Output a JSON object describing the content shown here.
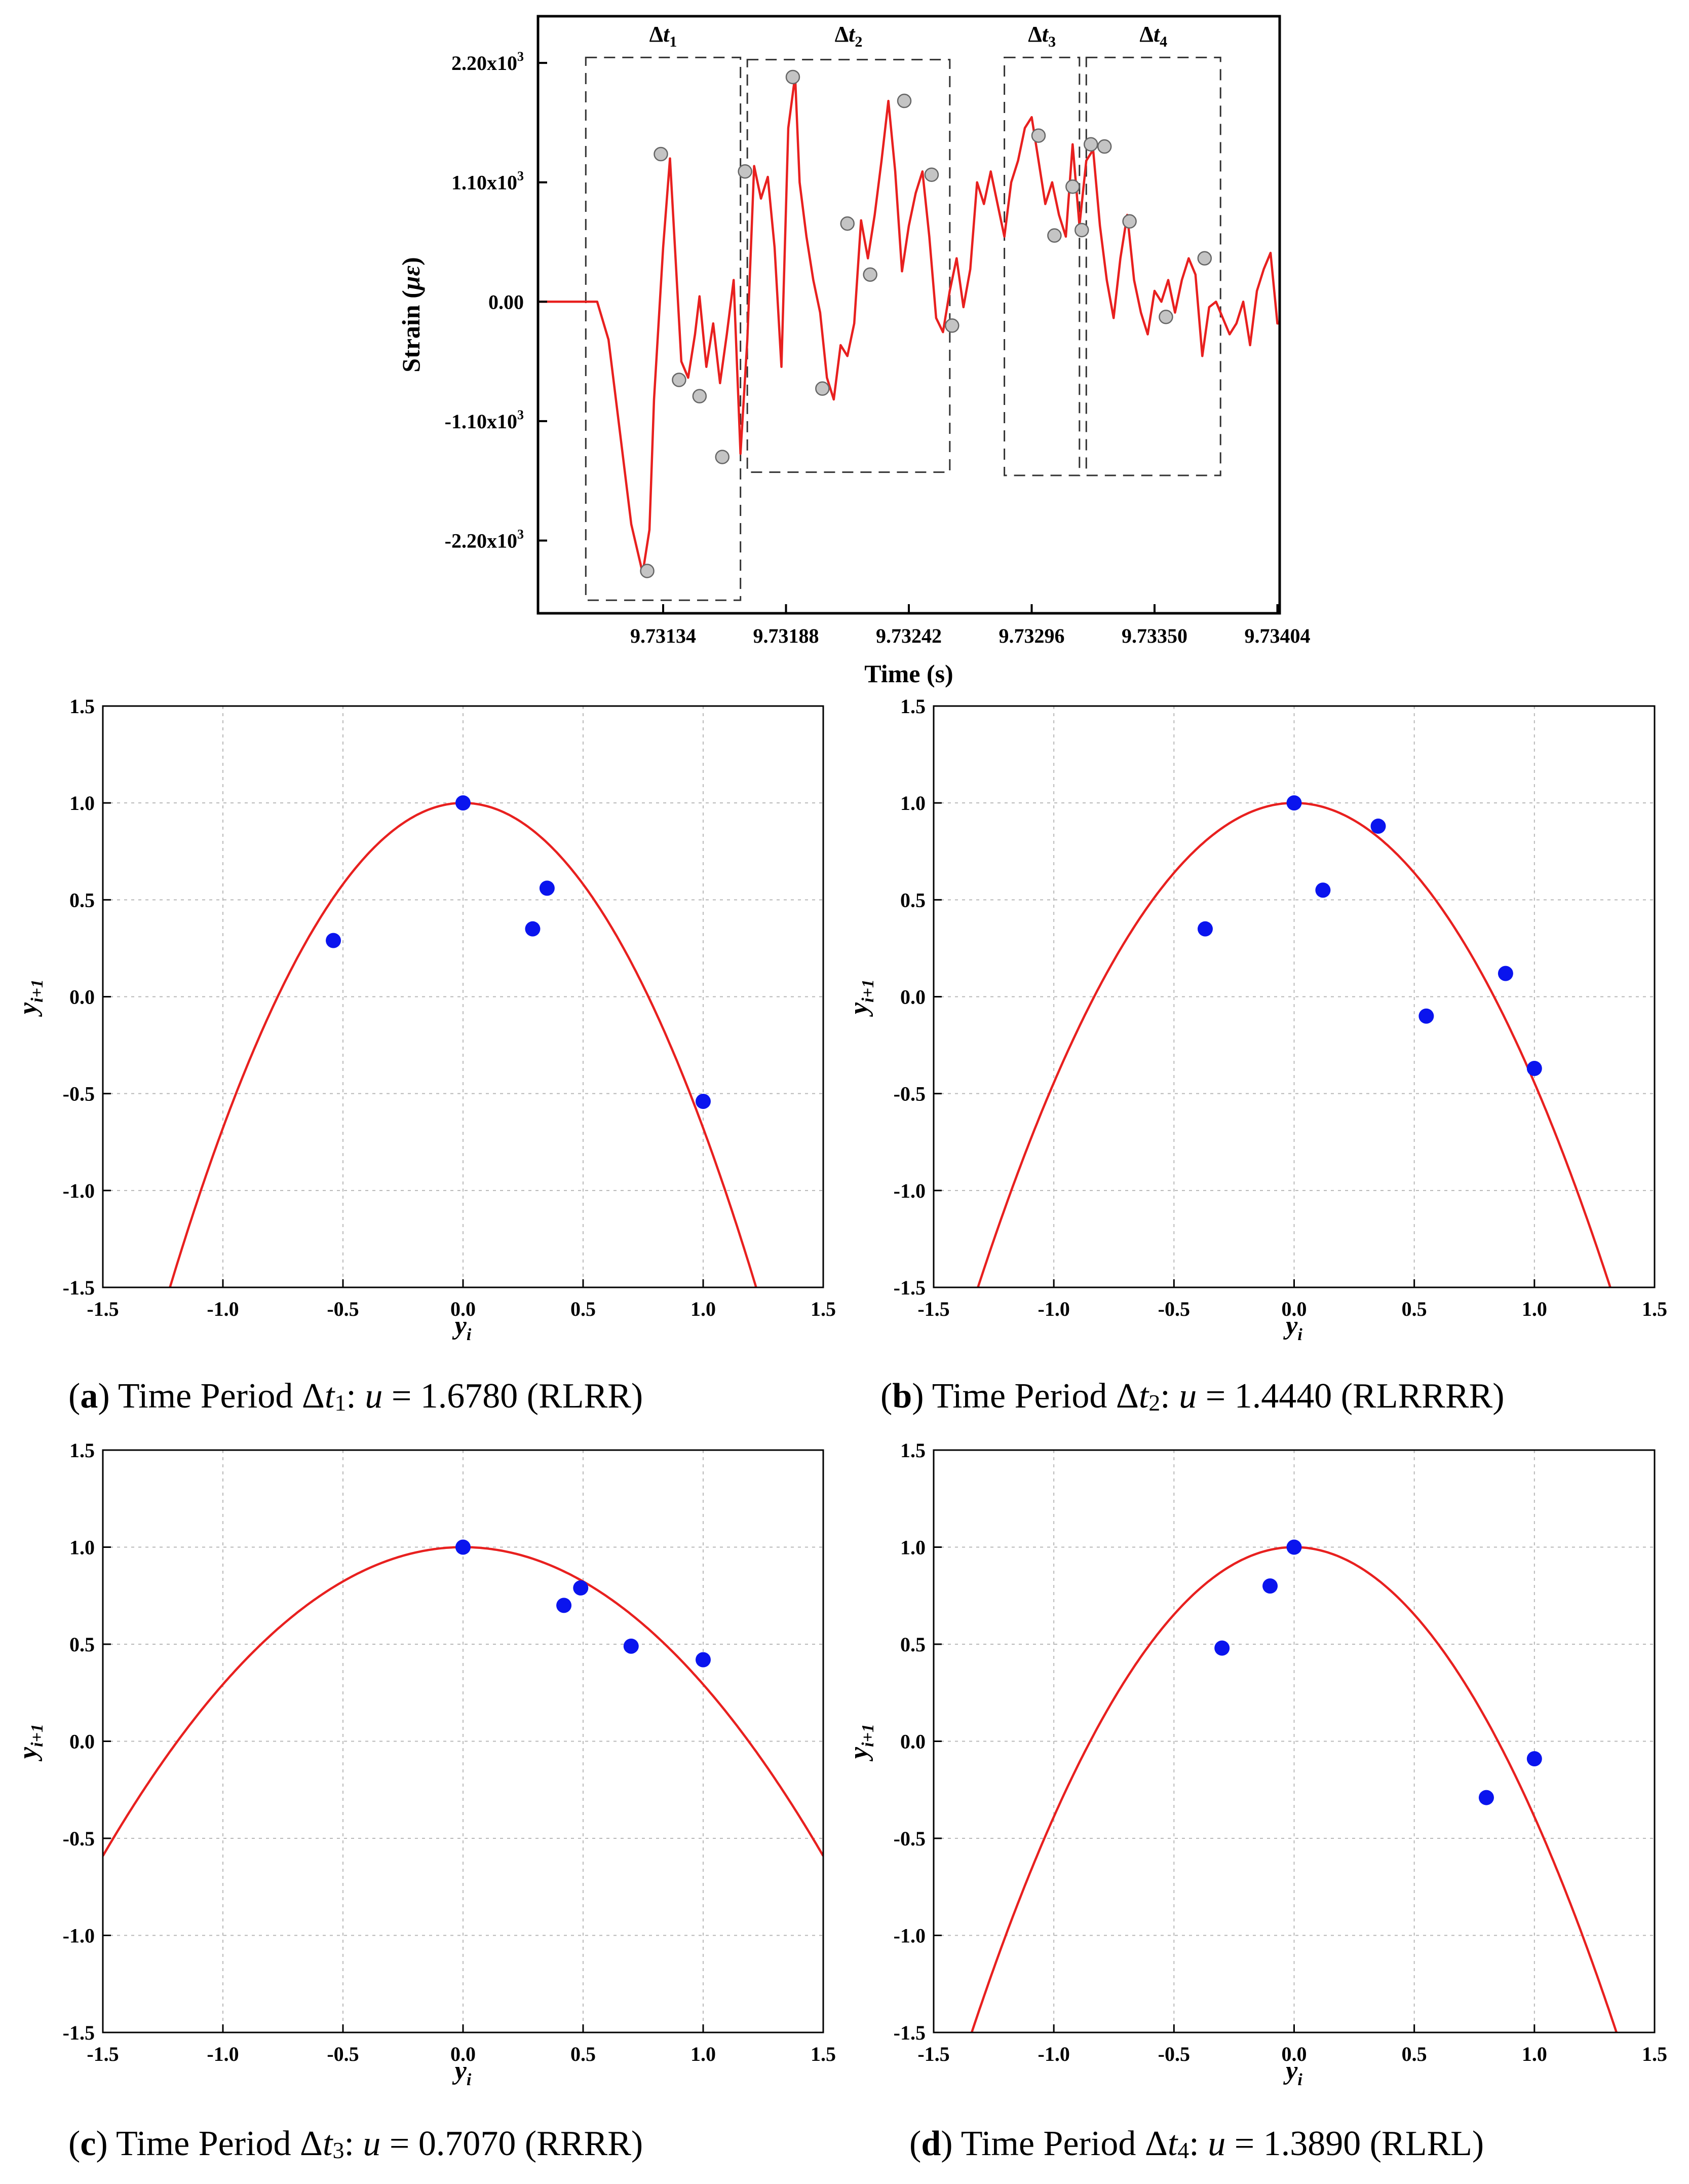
{
  "chart_data": [
    {
      "id": "top",
      "type": "line",
      "xlabel": "Time (s)",
      "ylabel_main": "Strain (",
      "ylabel_unit": "με",
      "ylabel_close": ")",
      "xticks": [
        "9.73134",
        "9.73188",
        "9.73242",
        "9.73296",
        "9.73350",
        "9.73404"
      ],
      "xtick_values": [
        9.73134,
        9.73188,
        9.73242,
        9.73296,
        9.7335,
        9.73404
      ],
      "xlim": [
        9.73079,
        9.73405
      ],
      "ylim": [
        -2870,
        2630
      ],
      "yticks": [
        {
          "value": 2200,
          "base": "2.20x10",
          "exp": "3"
        },
        {
          "value": 1100,
          "base": "1.10x10",
          "exp": "3"
        },
        {
          "value": 0,
          "base": "0.00",
          "exp": ""
        },
        {
          "value": -1100,
          "base": "-1.10x10",
          "exp": "3"
        },
        {
          "value": -2200,
          "base": "-2.20x10",
          "exp": "3"
        }
      ],
      "periods": [
        {
          "label": "Δt",
          "sub": "1",
          "x0": 9.731,
          "x1": 9.73168,
          "y0": -2750,
          "y1": 2250
        },
        {
          "label": "Δt",
          "sub": "2",
          "x0": 9.73171,
          "x1": 9.7326,
          "y0": -1570,
          "y1": 2230
        },
        {
          "label": "Δt",
          "sub": "3",
          "x0": 9.73284,
          "x1": 9.73317,
          "y0": -1600,
          "y1": 2250
        },
        {
          "label": "Δt",
          "sub": "4",
          "x0": 9.7332,
          "x1": 9.73379,
          "y0": -1600,
          "y1": 2250
        }
      ],
      "series": [
        {
          "name": "strain",
          "color": "#e8201f",
          "x": [
            9.73079,
            9.731,
            9.73105,
            9.7311,
            9.73115,
            9.7312,
            9.73125,
            9.73128,
            9.7313,
            9.73134,
            9.73137,
            9.7314,
            9.73142,
            9.73145,
            9.73148,
            9.7315,
            9.73153,
            9.73156,
            9.73159,
            9.73162,
            9.73165,
            9.73168,
            9.73171,
            9.73174,
            9.73177,
            9.7318,
            9.73183,
            9.73186,
            9.73189,
            9.73192,
            9.73194,
            9.73197,
            9.732,
            9.73203,
            9.73206,
            9.73209,
            9.73212,
            9.73215,
            9.73218,
            9.73221,
            9.73224,
            9.73227,
            9.7323,
            9.73233,
            9.73236,
            9.73239,
            9.73242,
            9.73245,
            9.73248,
            9.73251,
            9.73254,
            9.73257,
            9.7326,
            9.73263,
            9.73266,
            9.73269,
            9.73272,
            9.73275,
            9.73278,
            9.73281,
            9.73284,
            9.73287,
            9.7329,
            9.73293,
            9.73296,
            9.73299,
            9.73302,
            9.73305,
            9.73308,
            9.73311,
            9.73314,
            9.73317,
            9.7332,
            9.73323,
            9.73326,
            9.73329,
            9.73332,
            9.73335,
            9.73338,
            9.73341,
            9.73344,
            9.73347,
            9.7335,
            9.73353,
            9.73356,
            9.73359,
            9.73362,
            9.73365,
            9.73368,
            9.73371,
            9.73374,
            9.73377,
            9.7338,
            9.73383,
            9.73386,
            9.73389,
            9.73392,
            9.73395,
            9.73398,
            9.73401,
            9.73404,
            9.73405
          ],
          "y": [
            0,
            0,
            0,
            -350,
            -1200,
            -2050,
            -2500,
            -2100,
            -900,
            500,
            1320,
            200,
            -550,
            -700,
            -300,
            50,
            -600,
            -200,
            -750,
            -300,
            200,
            -1400,
            -350,
            1250,
            950,
            1150,
            500,
            -600,
            1600,
            2080,
            1100,
            600,
            200,
            -100,
            -700,
            -900,
            -400,
            -500,
            -200,
            750,
            400,
            800,
            1300,
            1850,
            1200,
            280,
            700,
            1000,
            1200,
            600,
            -150,
            -280,
            100,
            400,
            -50,
            300,
            1100,
            900,
            1200,
            900,
            600,
            1100,
            1300,
            1600,
            1700,
            1300,
            900,
            1100,
            800,
            600,
            1450,
            700,
            1300,
            1400,
            700,
            200,
            -150,
            400,
            800,
            200,
            -100,
            -300,
            100,
            0,
            200,
            -100,
            200,
            400,
            250,
            -500,
            -50,
            0,
            -150,
            -300,
            -200,
            0,
            -400,
            100,
            300,
            450,
            -200,
            -200
          ],
          "markers_x": [
            9.73127,
            9.73133,
            9.73141,
            9.7315,
            9.7316,
            9.7317,
            9.73191,
            9.73204,
            9.73215,
            9.73225,
            9.7324,
            9.73252,
            9.73261,
            9.73299,
            9.73306,
            9.73314,
            9.73318,
            9.73322,
            9.73328,
            9.73339,
            9.73355,
            9.73372
          ],
          "markers_y": [
            -2480,
            1360,
            -720,
            -870,
            -1430,
            1200,
            2070,
            -800,
            720,
            250,
            1850,
            1170,
            -220,
            1530,
            610,
            1060,
            660,
            1450,
            1430,
            740,
            -140,
            400
          ]
        }
      ]
    },
    {
      "id": "a",
      "type": "scatter",
      "caption_letter": "a",
      "caption_text": " Time Period Δ",
      "caption_t": "t",
      "caption_sub": "1",
      "caption_colon": ": ",
      "caption_u": "u",
      "caption_rest": " = 1.6780 (RLRR)",
      "xlabel": "y",
      "xlabel_sub": "i",
      "ylabel": "y",
      "ylabel_sub": "i+1",
      "xlim": [
        -1.5,
        1.5
      ],
      "ylim": [
        -1.5,
        1.5
      ],
      "ticks": [
        "-1.5",
        "-1.0",
        "-0.5",
        "0.0",
        "0.5",
        "1.0",
        "1.5"
      ],
      "tick_values": [
        -1.5,
        -1.0,
        -0.5,
        0.0,
        0.5,
        1.0,
        1.5
      ],
      "curve": {
        "u": 1.678,
        "color": "#e8201f"
      },
      "series": [
        {
          "name": "points",
          "color": "#0a14ee",
          "x": [
            0.0,
            -0.54,
            0.29,
            0.35,
            1.0
          ],
          "y": [
            1.0,
            0.29,
            0.35,
            0.56,
            -0.54
          ]
        }
      ]
    },
    {
      "id": "b",
      "type": "scatter",
      "caption_letter": "b",
      "caption_text": " Time Period Δ",
      "caption_t": "t",
      "caption_sub": "2",
      "caption_colon": ": ",
      "caption_u": "u",
      "caption_rest": " = 1.4440 (RLRRRR)",
      "xlabel": "y",
      "xlabel_sub": "i",
      "ylabel": "y",
      "ylabel_sub": "i+1",
      "xlim": [
        -1.5,
        1.5
      ],
      "ylim": [
        -1.5,
        1.5
      ],
      "ticks": [
        "-1.5",
        "-1.0",
        "-0.5",
        "0.0",
        "0.5",
        "1.0",
        "1.5"
      ],
      "tick_values": [
        -1.5,
        -1.0,
        -0.5,
        0.0,
        0.5,
        1.0,
        1.5
      ],
      "curve": {
        "u": 1.444,
        "color": "#e8201f"
      },
      "series": [
        {
          "name": "points",
          "color": "#0a14ee",
          "x": [
            0.0,
            0.35,
            0.12,
            -0.37,
            0.88,
            0.55,
            1.0
          ],
          "y": [
            1.0,
            0.88,
            0.55,
            0.35,
            0.12,
            -0.1,
            -0.37
          ]
        }
      ]
    },
    {
      "id": "c",
      "type": "scatter",
      "caption_letter": "c",
      "caption_text": " Time Period Δ",
      "caption_t": "t",
      "caption_sub": "3",
      "caption_colon": ": ",
      "caption_u": "u",
      "caption_rest": " = 0.7070 (RRRR)",
      "xlabel": "y",
      "xlabel_sub": "i",
      "ylabel": "y",
      "ylabel_sub": "i+1",
      "xlim": [
        -1.5,
        1.5
      ],
      "ylim": [
        -1.5,
        1.5
      ],
      "ticks": [
        "-1.5",
        "-1.0",
        "-0.5",
        "0.0",
        "0.5",
        "1.0",
        "1.5"
      ],
      "tick_values": [
        -1.5,
        -1.0,
        -0.5,
        0.0,
        0.5,
        1.0,
        1.5
      ],
      "curve": {
        "u": 0.707,
        "color": "#e8201f"
      },
      "series": [
        {
          "name": "points",
          "color": "#0a14ee",
          "x": [
            0.0,
            0.42,
            0.49,
            0.7,
            1.0
          ],
          "y": [
            1.0,
            0.7,
            0.79,
            0.49,
            0.42
          ]
        }
      ]
    },
    {
      "id": "d",
      "type": "scatter",
      "caption_letter": "d",
      "caption_text": " Time Period Δ",
      "caption_t": "t",
      "caption_sub": "4",
      "caption_colon": ": ",
      "caption_u": "u",
      "caption_rest": " = 1.3890 (RLRL)",
      "xlabel": "y",
      "xlabel_sub": "i",
      "ylabel": "y",
      "ylabel_sub": "i+1",
      "xlim": [
        -1.5,
        1.5
      ],
      "ylim": [
        -1.5,
        1.5
      ],
      "ticks": [
        "-1.5",
        "-1.0",
        "-0.5",
        "0.0",
        "0.5",
        "1.0",
        "1.5"
      ],
      "tick_values": [
        -1.5,
        -1.0,
        -0.5,
        0.0,
        0.5,
        1.0,
        1.5
      ],
      "curve": {
        "u": 1.389,
        "color": "#e8201f"
      },
      "series": [
        {
          "name": "points",
          "color": "#0a14ee",
          "x": [
            0.0,
            -0.1,
            -0.3,
            0.8,
            1.0
          ],
          "y": [
            1.0,
            0.8,
            0.48,
            -0.29,
            -0.09
          ]
        }
      ]
    }
  ]
}
